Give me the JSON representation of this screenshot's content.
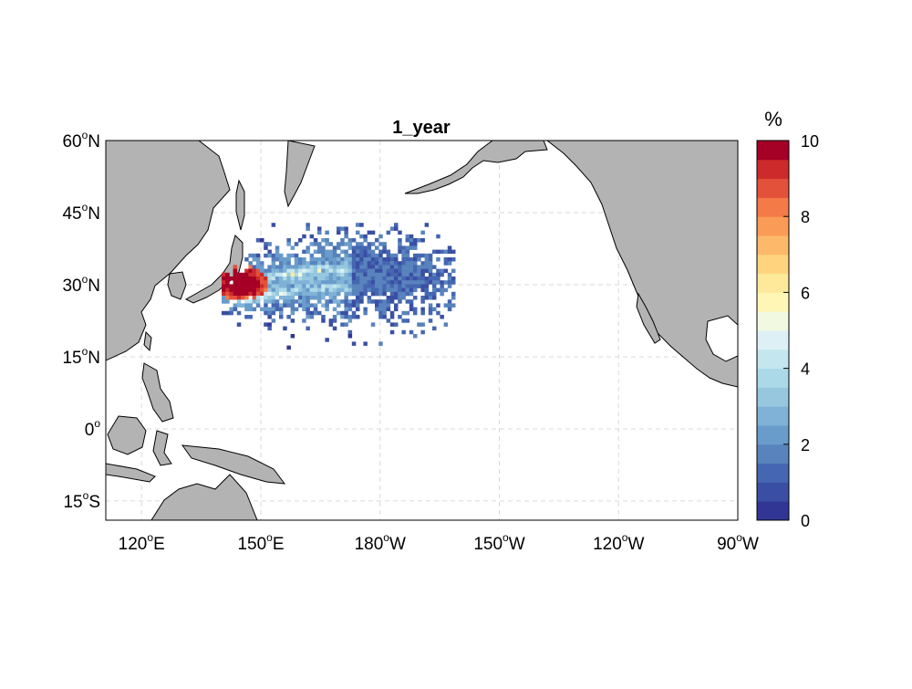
{
  "map": {
    "title": "1_year",
    "lon_labels": [
      {
        "lon": 120,
        "deg": "120",
        "hemi": "E"
      },
      {
        "lon": 150,
        "deg": "150",
        "hemi": "E"
      },
      {
        "lon": 180,
        "deg": "180",
        "hemi": "W"
      },
      {
        "lon": 210,
        "deg": "150",
        "hemi": "W"
      },
      {
        "lon": 240,
        "deg": "120",
        "hemi": "W"
      },
      {
        "lon": 270,
        "deg": "90",
        "hemi": "W"
      }
    ],
    "lat_labels": [
      {
        "lat": 60,
        "deg": "60",
        "hemi": "N"
      },
      {
        "lat": 45,
        "deg": "45",
        "hemi": "N"
      },
      {
        "lat": 30,
        "deg": "30",
        "hemi": "N"
      },
      {
        "lat": 15,
        "deg": "15",
        "hemi": "N"
      },
      {
        "lat": 0,
        "deg": "0",
        "hemi": ""
      },
      {
        "lat": -15,
        "deg": "15",
        "hemi": "S"
      }
    ],
    "lon_range": [
      111,
      270
    ],
    "lat_range": [
      -19,
      60
    ],
    "grid": "dashed",
    "land_color": "#b3b3b3",
    "ocean_color": "#ffffff"
  },
  "colorbar": {
    "title": "%",
    "ticks": [
      0,
      2,
      4,
      6,
      8,
      10
    ],
    "levels": 20,
    "colors": [
      "#313695",
      "#3a4fa3",
      "#4566b0",
      "#5883bd",
      "#6a9ccb",
      "#7fb2d6",
      "#96c7df",
      "#acd9e8",
      "#c3e6ef",
      "#dcf0f5",
      "#f2f9e1",
      "#fff6b6",
      "#fee99a",
      "#fed47f",
      "#fdb96a",
      "#fa9b58",
      "#f47a48",
      "#e3513a",
      "#cd2b2b",
      "#a50026"
    ]
  }
}
